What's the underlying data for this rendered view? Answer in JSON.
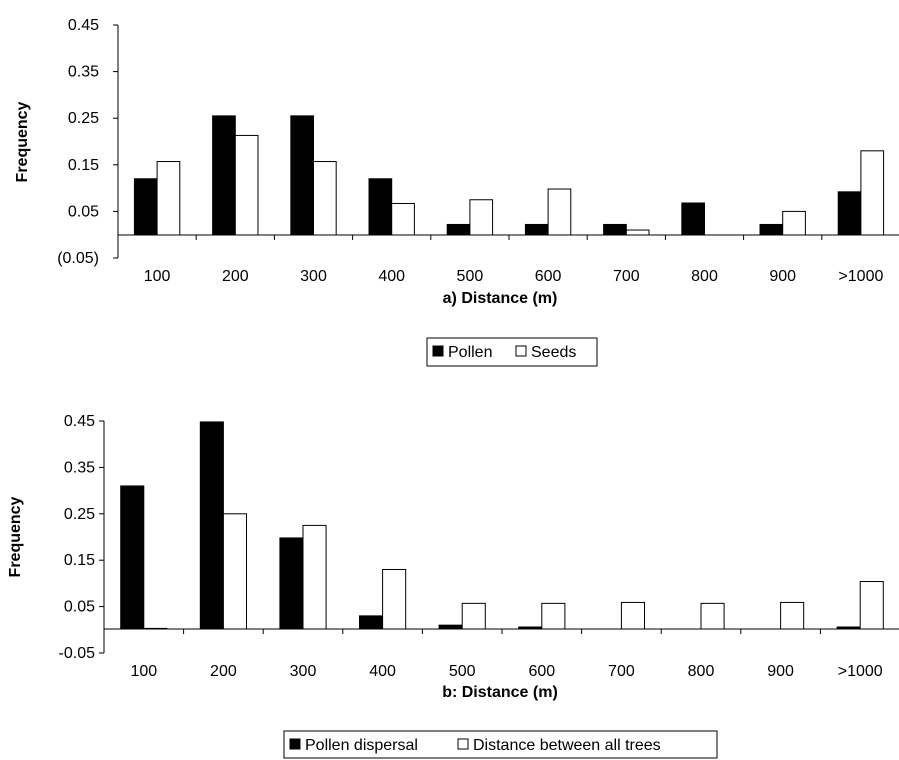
{
  "chart_data": [
    {
      "type": "bar",
      "xlabel": "a) Distance (m)",
      "ylabel": "Frequency",
      "categories": [
        "100",
        "200",
        "300",
        "400",
        "500",
        "600",
        "700",
        "800",
        "900",
        ">1000"
      ],
      "yticks": [
        "(0.05)",
        "0.05",
        "0.15",
        "0.25",
        "0.35",
        "0.45"
      ],
      "ytick_values": [
        -0.05,
        0.05,
        0.15,
        0.25,
        0.35,
        0.45
      ],
      "ylim": [
        -0.05,
        0.45
      ],
      "grid": false,
      "legend_position": "bottom",
      "series": [
        {
          "name": "Pollen",
          "color": "#000000",
          "values": [
            0.12,
            0.255,
            0.255,
            0.12,
            0.022,
            0.022,
            0.022,
            0.068,
            0.022,
            0.092
          ]
        },
        {
          "name": "Seeds",
          "color": "#ffffff",
          "values": [
            0.157,
            0.213,
            0.157,
            0.067,
            0.075,
            0.098,
            0.01,
            0,
            0.05,
            0.18
          ]
        }
      ]
    },
    {
      "type": "bar",
      "xlabel": "b: Distance (m)",
      "ylabel": "Frequency",
      "categories": [
        "100",
        "200",
        "300",
        "400",
        "500",
        "600",
        "700",
        "800",
        "900",
        ">1000"
      ],
      "yticks": [
        "-0.05",
        "0.05",
        "0.15",
        "0.25",
        "0.35",
        "0.45"
      ],
      "ytick_values": [
        -0.05,
        0.05,
        0.15,
        0.25,
        0.35,
        0.45
      ],
      "ylim": [
        -0.05,
        0.45
      ],
      "grid": false,
      "legend_position": "bottom",
      "series": [
        {
          "name": "Pollen dispersal",
          "color": "#000000",
          "values": [
            0.31,
            0.448,
            0.198,
            0.03,
            0.01,
            0.006,
            0,
            0,
            0,
            0.006
          ]
        },
        {
          "name": "Distance between all trees",
          "color": "#ffffff",
          "values": [
            0.003,
            0.25,
            0.225,
            0.13,
            0.057,
            0.057,
            0.059,
            0.057,
            0.059,
            0.104
          ]
        }
      ]
    }
  ]
}
